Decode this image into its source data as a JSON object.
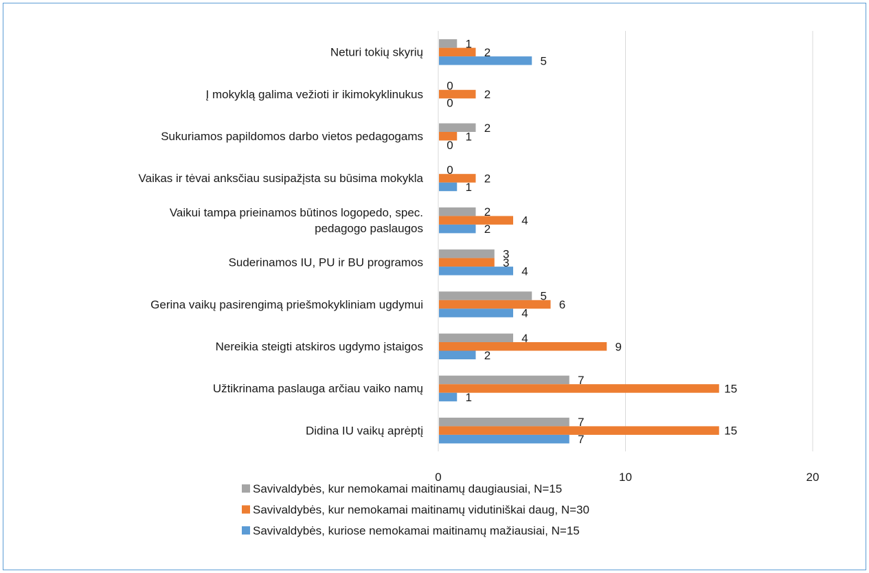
{
  "chart_data": {
    "type": "bar",
    "orientation": "horizontal",
    "categories": [
      "Neturi tokių skyrių",
      "Į mokyklą galima vežioti ir ikimokyklinukus",
      "Sukuriamos papildomos darbo vietos pedagogams",
      "Vaikas ir tėvai anksčiau susipažįsta su būsima mokykla",
      "Vaikui tampa prieinamos būtinos logopedo, spec. pedagogo paslaugos",
      "Suderinamos IU, PU ir BU programos",
      "Gerina vaikų pasirengimą priešmokykliniam ugdymui",
      "Nereikia steigti atskiros ugdymo įstaigos",
      "Užtikrinama paslauga arčiau vaiko namų",
      "Didina IU vaikų aprėptį"
    ],
    "category_lines": [
      [
        "Neturi tokių skyrių"
      ],
      [
        "Į mokyklą galima vežioti ir ikimokyklinukus"
      ],
      [
        "Sukuriamos papildomos darbo vietos pedagogams"
      ],
      [
        "Vaikas ir tėvai anksčiau susipažįsta su būsima mokykla"
      ],
      [
        "Vaikui tampa prieinamos būtinos logopedo, spec.",
        "pedagogo paslaugos"
      ],
      [
        "Suderinamos IU, PU ir BU programos"
      ],
      [
        "Gerina vaikų pasirengimą priešmokykliniam ugdymui"
      ],
      [
        "Nereikia steigti atskiros ugdymo įstaigos"
      ],
      [
        "Užtikrinama paslauga arčiau vaiko namų"
      ],
      [
        "Didina IU vaikų aprėptį"
      ]
    ],
    "series": [
      {
        "name": "Savivaldybės, kur nemokamai maitinamų daugiausiai, N=15",
        "color": "#a5a5a5",
        "values": [
          1,
          0,
          2,
          0,
          2,
          3,
          5,
          4,
          7,
          7
        ]
      },
      {
        "name": "Savivaldybės, kur nemokamai maitinamų vidutiniškai daug, N=30",
        "color": "#ed7d31",
        "values": [
          2,
          2,
          1,
          2,
          4,
          3,
          6,
          9,
          15,
          15
        ]
      },
      {
        "name": "Savivaldybės, kuriose nemokamai maitinamų mažiausiai, N=15",
        "color": "#5b9bd5",
        "values": [
          5,
          0,
          0,
          1,
          2,
          4,
          4,
          2,
          1,
          7
        ]
      }
    ],
    "xlim": [
      0,
      20
    ],
    "xticks": [
      0,
      10,
      20
    ],
    "grid": true,
    "legend_position": "bottom",
    "data_labels": true,
    "title": "",
    "xlabel": "",
    "ylabel": ""
  }
}
